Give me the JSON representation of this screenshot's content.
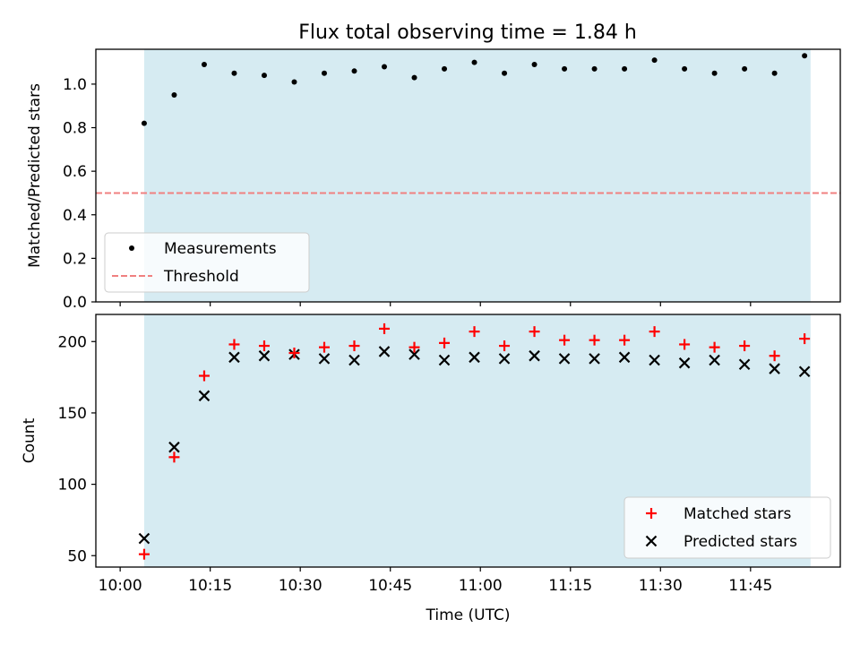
{
  "title": "Flux total observing time = 1.84 h",
  "colors": {
    "observing_span": "#add8e6",
    "matched_marker": "#ff0000",
    "predicted_marker": "#000000",
    "measurement_marker": "#000000",
    "threshold_line": "#f08080"
  },
  "chart_data": [
    {
      "type": "scatter",
      "panel": "top",
      "title": "Flux total observing time = 1.84 h",
      "xlabel": "",
      "ylabel": "Matched/Predicted stars",
      "ylim": [
        0,
        1.16
      ],
      "yticks": [
        "0.0",
        "0.2",
        "0.4",
        "0.6",
        "0.8",
        "1.0"
      ],
      "grid": false,
      "legend": "lower-left",
      "shaded_span": {
        "from": "10:04",
        "to": "11:55"
      },
      "x": [
        "10:04",
        "10:09",
        "10:14",
        "10:19",
        "10:24",
        "10:29",
        "10:34",
        "10:39",
        "10:44",
        "10:49",
        "10:54",
        "10:59",
        "11:04",
        "11:09",
        "11:14",
        "11:19",
        "11:24",
        "11:29",
        "11:34",
        "11:39",
        "11:44",
        "11:49",
        "11:54"
      ],
      "series": [
        {
          "name": "Measurements",
          "marker": "dot",
          "values": [
            0.82,
            0.95,
            1.09,
            1.05,
            1.04,
            1.01,
            1.05,
            1.06,
            1.08,
            1.03,
            1.07,
            1.1,
            1.05,
            1.09,
            1.07,
            1.07,
            1.07,
            1.11,
            1.07,
            1.05,
            1.07,
            1.05,
            1.13
          ]
        }
      ],
      "reference_lines": [
        {
          "name": "Threshold",
          "y": 0.5,
          "style": "dashed"
        }
      ]
    },
    {
      "type": "scatter",
      "panel": "bottom",
      "xlabel": "Time (UTC)",
      "ylabel": "Count",
      "ylim": [
        42,
        219
      ],
      "yticks": [
        "50",
        "100",
        "150",
        "200"
      ],
      "xticks": [
        "10:00",
        "10:15",
        "10:30",
        "10:45",
        "11:00",
        "11:15",
        "11:30",
        "11:45"
      ],
      "grid": false,
      "legend": "lower-right",
      "shaded_span": {
        "from": "10:04",
        "to": "11:55"
      },
      "x": [
        "10:04",
        "10:09",
        "10:14",
        "10:19",
        "10:24",
        "10:29",
        "10:34",
        "10:39",
        "10:44",
        "10:49",
        "10:54",
        "10:59",
        "11:04",
        "11:09",
        "11:14",
        "11:19",
        "11:24",
        "11:29",
        "11:34",
        "11:39",
        "11:44",
        "11:49",
        "11:54"
      ],
      "series": [
        {
          "name": "Matched stars",
          "marker": "plus",
          "values": [
            51,
            119,
            176,
            198,
            197,
            192,
            196,
            197,
            209,
            196,
            199,
            207,
            197,
            207,
            201,
            201,
            201,
            207,
            198,
            196,
            197,
            190,
            202
          ]
        },
        {
          "name": "Predicted stars",
          "marker": "x",
          "values": [
            62,
            126,
            162,
            189,
            190,
            191,
            188,
            187,
            193,
            191,
            187,
            189,
            188,
            190,
            188,
            188,
            189,
            187,
            185,
            187,
            184,
            181,
            179
          ]
        }
      ]
    }
  ]
}
